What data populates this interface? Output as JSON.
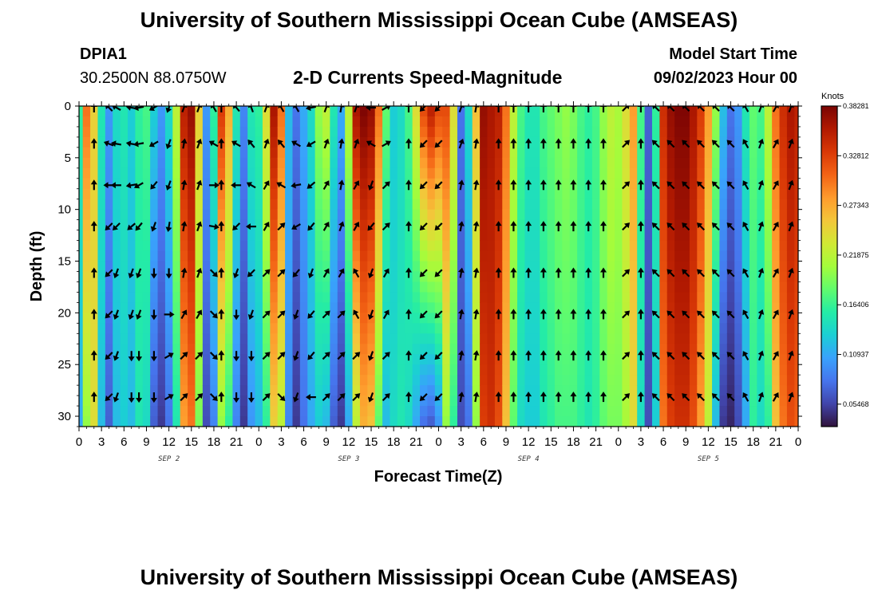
{
  "page": {
    "title_top": "University of Southern Mississippi Ocean Cube (AMSEAS)",
    "title_bottom": "University of Southern Mississippi Ocean Cube (AMSEAS)",
    "station_id": "DPIA1",
    "station_coords": "30.2500N  88.0750W",
    "plot_subtitle": "2-D Currents Speed-Magnitude",
    "model_start_label": "Model Start Time",
    "model_start_value": "09/02/2023 Hour 00"
  },
  "colors": {
    "background": "#ffffff",
    "arrow": "#000000",
    "colormap": [
      "#30123b",
      "#4145ab",
      "#4675ed",
      "#39a2fc",
      "#1bcfd4",
      "#24eca6",
      "#61fc6c",
      "#a4fc3b",
      "#d1e834",
      "#f3c63a",
      "#fe9b2d",
      "#f36315",
      "#d93806",
      "#b11901",
      "#7a0403"
    ]
  },
  "chart_data": {
    "type": "heatmap",
    "title": "2-D Currents Speed-Magnitude",
    "xlabel": "Forecast Time(Z)",
    "ylabel": "Depth (ft)",
    "x_tick_labels": [
      "0",
      "3",
      "6",
      "9",
      "12",
      "15",
      "18",
      "21",
      "0",
      "3",
      "6",
      "9",
      "12",
      "15",
      "18",
      "21",
      "0",
      "3",
      "6",
      "9",
      "12",
      "15",
      "18",
      "21",
      "0",
      "3",
      "6",
      "9",
      "12",
      "15",
      "18",
      "21",
      "0"
    ],
    "day_labels": [
      {
        "label": "SEP 2",
        "at_hour": 12
      },
      {
        "label": "SEP 3",
        "at_hour": 36
      },
      {
        "label": "SEP 4",
        "at_hour": 60
      },
      {
        "label": "SEP 5",
        "at_hour": 84
      }
    ],
    "xlim_hours": [
      0,
      96
    ],
    "y_ticks": [
      "0",
      "5",
      "10",
      "15",
      "20",
      "25",
      "30"
    ],
    "ylim_ft": [
      0,
      31
    ],
    "colorbar": {
      "label": "Knots",
      "ticks": [
        "0.38281",
        "0.32812",
        "0.27343",
        "0.21875",
        "0.16406",
        "0.10937",
        "0.05468"
      ],
      "range": [
        0.03,
        0.3828
      ]
    },
    "speed_knots_by_hour": [
      {
        "hour": 0,
        "top": 0.16,
        "bottom": 0.11
      },
      {
        "hour": 1,
        "top": 0.3,
        "bottom": 0.2
      },
      {
        "hour": 2,
        "top": 0.25,
        "bottom": 0.24
      },
      {
        "hour": 3,
        "top": 0.15,
        "bottom": 0.12
      },
      {
        "hour": 4,
        "top": 0.1,
        "bottom": 0.07
      },
      {
        "hour": 5,
        "top": 0.14,
        "bottom": 0.12
      },
      {
        "hour": 6,
        "top": 0.15,
        "bottom": 0.13
      },
      {
        "hour": 7,
        "top": 0.13,
        "bottom": 0.12
      },
      {
        "hour": 8,
        "top": 0.16,
        "bottom": 0.15
      },
      {
        "hour": 9,
        "top": 0.17,
        "bottom": 0.14
      },
      {
        "hour": 10,
        "top": 0.13,
        "bottom": 0.07
      },
      {
        "hour": 11,
        "top": 0.1,
        "bottom": 0.05
      },
      {
        "hour": 12,
        "top": 0.14,
        "bottom": 0.08
      },
      {
        "hour": 13,
        "top": 0.22,
        "bottom": 0.15
      },
      {
        "hour": 14,
        "top": 0.35,
        "bottom": 0.28
      },
      {
        "hour": 15,
        "top": 0.37,
        "bottom": 0.3
      },
      {
        "hour": 16,
        "top": 0.25,
        "bottom": 0.19
      },
      {
        "hour": 17,
        "top": 0.1,
        "bottom": 0.06
      },
      {
        "hour": 18,
        "top": 0.16,
        "bottom": 0.09
      },
      {
        "hour": 19,
        "top": 0.33,
        "bottom": 0.2
      },
      {
        "hour": 20,
        "top": 0.27,
        "bottom": 0.16
      },
      {
        "hour": 21,
        "top": 0.15,
        "bottom": 0.09
      },
      {
        "hour": 22,
        "top": 0.09,
        "bottom": 0.05
      },
      {
        "hour": 23,
        "top": 0.15,
        "bottom": 0.1
      },
      {
        "hour": 24,
        "top": 0.16,
        "bottom": 0.12
      },
      {
        "hour": 25,
        "top": 0.24,
        "bottom": 0.16
      },
      {
        "hour": 26,
        "top": 0.36,
        "bottom": 0.25
      },
      {
        "hour": 27,
        "top": 0.3,
        "bottom": 0.22
      },
      {
        "hour": 28,
        "top": 0.12,
        "bottom": 0.09
      },
      {
        "hour": 29,
        "top": 0.08,
        "bottom": 0.05
      },
      {
        "hour": 30,
        "top": 0.11,
        "bottom": 0.08
      },
      {
        "hour": 31,
        "top": 0.14,
        "bottom": 0.11
      },
      {
        "hour": 32,
        "top": 0.2,
        "bottom": 0.13
      },
      {
        "hour": 33,
        "top": 0.22,
        "bottom": 0.12
      },
      {
        "hour": 34,
        "top": 0.15,
        "bottom": 0.07
      },
      {
        "hour": 35,
        "top": 0.11,
        "bottom": 0.05
      },
      {
        "hour": 36,
        "top": 0.22,
        "bottom": 0.11
      },
      {
        "hour": 37,
        "top": 0.36,
        "bottom": 0.22
      },
      {
        "hour": 38,
        "top": 0.38,
        "bottom": 0.27
      },
      {
        "hour": 39,
        "top": 0.37,
        "bottom": 0.26
      },
      {
        "hour": 40,
        "top": 0.3,
        "bottom": 0.18
      },
      {
        "hour": 41,
        "top": 0.18,
        "bottom": 0.12
      },
      {
        "hour": 42,
        "top": 0.13,
        "bottom": 0.14
      },
      {
        "hour": 43,
        "top": 0.14,
        "bottom": 0.15
      },
      {
        "hour": 44,
        "top": 0.17,
        "bottom": 0.14
      },
      {
        "hour": 45,
        "top": 0.24,
        "bottom": 0.11
      },
      {
        "hour": 46,
        "top": 0.32,
        "bottom": 0.08
      },
      {
        "hour": 47,
        "top": 0.35,
        "bottom": 0.07
      },
      {
        "hour": 48,
        "top": 0.32,
        "bottom": 0.1
      },
      {
        "hour": 49,
        "top": 0.32,
        "bottom": 0.2
      },
      {
        "hour": 50,
        "top": 0.24,
        "bottom": 0.16
      },
      {
        "hour": 51,
        "top": 0.08,
        "bottom": 0.06
      },
      {
        "hour": 52,
        "top": 0.14,
        "bottom": 0.08
      },
      {
        "hour": 53,
        "top": 0.26,
        "bottom": 0.2
      },
      {
        "hour": 54,
        "top": 0.37,
        "bottom": 0.33
      },
      {
        "hour": 55,
        "top": 0.36,
        "bottom": 0.34
      },
      {
        "hour": 56,
        "top": 0.35,
        "bottom": 0.32
      },
      {
        "hour": 57,
        "top": 0.3,
        "bottom": 0.26
      },
      {
        "hour": 58,
        "top": 0.22,
        "bottom": 0.18
      },
      {
        "hour": 59,
        "top": 0.17,
        "bottom": 0.14
      },
      {
        "hour": 60,
        "top": 0.15,
        "bottom": 0.13
      },
      {
        "hour": 61,
        "top": 0.15,
        "bottom": 0.13
      },
      {
        "hour": 62,
        "top": 0.17,
        "bottom": 0.15
      },
      {
        "hour": 63,
        "top": 0.18,
        "bottom": 0.16
      },
      {
        "hour": 64,
        "top": 0.19,
        "bottom": 0.17
      },
      {
        "hour": 65,
        "top": 0.2,
        "bottom": 0.17
      },
      {
        "hour": 66,
        "top": 0.19,
        "bottom": 0.17
      },
      {
        "hour": 67,
        "top": 0.17,
        "bottom": 0.16
      },
      {
        "hour": 68,
        "top": 0.16,
        "bottom": 0.15
      },
      {
        "hour": 69,
        "top": 0.17,
        "bottom": 0.16
      },
      {
        "hour": 70,
        "top": 0.2,
        "bottom": 0.18
      },
      {
        "hour": 71,
        "top": 0.22,
        "bottom": 0.19
      },
      {
        "hour": 72,
        "top": 0.21,
        "bottom": 0.19
      },
      {
        "hour": 73,
        "top": 0.24,
        "bottom": 0.21
      },
      {
        "hour": 74,
        "top": 0.28,
        "bottom": 0.24
      },
      {
        "hour": 75,
        "top": 0.17,
        "bottom": 0.14
      },
      {
        "hour": 76,
        "top": 0.07,
        "bottom": 0.06
      },
      {
        "hour": 77,
        "top": 0.16,
        "bottom": 0.13
      },
      {
        "hour": 78,
        "top": 0.34,
        "bottom": 0.3
      },
      {
        "hour": 79,
        "top": 0.37,
        "bottom": 0.33
      },
      {
        "hour": 80,
        "top": 0.38,
        "bottom": 0.34
      },
      {
        "hour": 81,
        "top": 0.38,
        "bottom": 0.34
      },
      {
        "hour": 82,
        "top": 0.36,
        "bottom": 0.32
      },
      {
        "hour": 83,
        "top": 0.33,
        "bottom": 0.28
      },
      {
        "hour": 84,
        "top": 0.28,
        "bottom": 0.22
      },
      {
        "hour": 85,
        "top": 0.2,
        "bottom": 0.12
      },
      {
        "hour": 86,
        "top": 0.12,
        "bottom": 0.05
      },
      {
        "hour": 87,
        "top": 0.08,
        "bottom": 0.04
      },
      {
        "hour": 88,
        "top": 0.1,
        "bottom": 0.06
      },
      {
        "hour": 89,
        "top": 0.15,
        "bottom": 0.11
      },
      {
        "hour": 90,
        "top": 0.18,
        "bottom": 0.16
      },
      {
        "hour": 91,
        "top": 0.17,
        "bottom": 0.14
      },
      {
        "hour": 92,
        "top": 0.22,
        "bottom": 0.16
      },
      {
        "hour": 93,
        "top": 0.3,
        "bottom": 0.26
      },
      {
        "hour": 94,
        "top": 0.34,
        "bottom": 0.3
      },
      {
        "hour": 95,
        "top": 0.36,
        "bottom": 0.32
      },
      {
        "hour": 96,
        "top": 0.35,
        "bottom": 0.31
      }
    ],
    "arrow_depths_ft": [
      0,
      3.5,
      7.5,
      11.5,
      16,
      20,
      24,
      28
    ],
    "arrow_direction_deg_by_hour": [
      {
        "hour": 2,
        "dir": [
          0,
          0,
          0,
          0,
          0,
          0,
          0,
          0
        ]
      },
      {
        "hour": 4,
        "dir": [
          315,
          290,
          270,
          225,
          225,
          225,
          225,
          225
        ]
      },
      {
        "hour": 5,
        "dir": [
          300,
          280,
          270,
          225,
          200,
          200,
          200,
          200
        ]
      },
      {
        "hour": 7,
        "dir": [
          280,
          280,
          260,
          230,
          200,
          200,
          180,
          180
        ]
      },
      {
        "hour": 8,
        "dir": [
          260,
          260,
          240,
          220,
          200,
          200,
          180,
          180
        ]
      },
      {
        "hour": 10,
        "dir": [
          240,
          240,
          220,
          200,
          180,
          180,
          180,
          180
        ]
      },
      {
        "hour": 12,
        "dir": [
          200,
          200,
          200,
          190,
          180,
          90,
          60,
          60
        ]
      },
      {
        "hour": 14,
        "dir": [
          20,
          10,
          10,
          10,
          10,
          30,
          45,
          45
        ]
      },
      {
        "hour": 16,
        "dir": [
          20,
          20,
          20,
          20,
          20,
          30,
          45,
          45
        ]
      },
      {
        "hour": 18,
        "dir": [
          330,
          300,
          90,
          100,
          135,
          135,
          135,
          135
        ]
      },
      {
        "hour": 19,
        "dir": [
          0,
          0,
          0,
          0,
          0,
          0,
          0,
          0
        ]
      },
      {
        "hour": 21,
        "dir": [
          320,
          300,
          270,
          225,
          200,
          180,
          180,
          180
        ]
      },
      {
        "hour": 23,
        "dir": [
          340,
          320,
          300,
          270,
          225,
          200,
          180,
          180
        ]
      },
      {
        "hour": 25,
        "dir": [
          20,
          20,
          30,
          30,
          45,
          45,
          45,
          45
        ]
      },
      {
        "hour": 27,
        "dir": [
          330,
          320,
          300,
          45,
          45,
          45,
          45,
          135
        ]
      },
      {
        "hour": 29,
        "dir": [
          330,
          300,
          260,
          240,
          220,
          200,
          200,
          200
        ]
      },
      {
        "hour": 31,
        "dir": [
          260,
          240,
          230,
          220,
          200,
          220,
          220,
          270
        ]
      },
      {
        "hour": 33,
        "dir": [
          20,
          20,
          30,
          30,
          30,
          45,
          45,
          45
        ]
      },
      {
        "hour": 35,
        "dir": [
          10,
          10,
          10,
          20,
          30,
          45,
          45,
          45
        ]
      },
      {
        "hour": 37,
        "dir": [
          20,
          20,
          30,
          30,
          330,
          330,
          45,
          45
        ]
      },
      {
        "hour": 39,
        "dir": [
          270,
          300,
          200,
          220,
          200,
          200,
          200,
          200
        ]
      },
      {
        "hour": 41,
        "dir": [
          60,
          60,
          45,
          45,
          30,
          30,
          45,
          45
        ]
      },
      {
        "hour": 44,
        "dir": [
          0,
          0,
          0,
          0,
          0,
          0,
          0,
          0
        ]
      },
      {
        "hour": 46,
        "dir": [
          225,
          225,
          225,
          225,
          225,
          225,
          225,
          225
        ]
      },
      {
        "hour": 48,
        "dir": [
          225,
          225,
          225,
          225,
          225,
          225,
          225,
          225
        ]
      },
      {
        "hour": 51,
        "dir": [
          20,
          20,
          10,
          10,
          10,
          10,
          10,
          10
        ]
      },
      {
        "hour": 53,
        "dir": [
          10,
          10,
          10,
          10,
          10,
          10,
          10,
          10
        ]
      },
      {
        "hour": 56,
        "dir": [
          0,
          0,
          0,
          0,
          0,
          0,
          0,
          0
        ]
      },
      {
        "hour": 58,
        "dir": [
          0,
          0,
          0,
          0,
          0,
          0,
          0,
          0
        ]
      },
      {
        "hour": 60,
        "dir": [
          0,
          0,
          0,
          0,
          0,
          0,
          0,
          0
        ]
      },
      {
        "hour": 62,
        "dir": [
          0,
          0,
          0,
          0,
          0,
          0,
          0,
          0
        ]
      },
      {
        "hour": 64,
        "dir": [
          0,
          0,
          0,
          0,
          0,
          0,
          0,
          0
        ]
      },
      {
        "hour": 66,
        "dir": [
          0,
          0,
          0,
          0,
          0,
          0,
          0,
          0
        ]
      },
      {
        "hour": 68,
        "dir": [
          0,
          0,
          0,
          0,
          0,
          0,
          0,
          0
        ]
      },
      {
        "hour": 70,
        "dir": [
          0,
          0,
          0,
          0,
          0,
          0,
          0,
          0
        ]
      },
      {
        "hour": 73,
        "dir": [
          45,
          45,
          45,
          45,
          45,
          45,
          45,
          45
        ]
      },
      {
        "hour": 75,
        "dir": [
          0,
          0,
          0,
          0,
          0,
          0,
          0,
          0
        ]
      },
      {
        "hour": 77,
        "dir": [
          315,
          315,
          315,
          315,
          315,
          315,
          315,
          315
        ]
      },
      {
        "hour": 79,
        "dir": [
          315,
          315,
          315,
          315,
          315,
          315,
          315,
          315
        ]
      },
      {
        "hour": 81,
        "dir": [
          315,
          315,
          315,
          315,
          315,
          315,
          315,
          315
        ]
      },
      {
        "hour": 83,
        "dir": [
          315,
          315,
          315,
          315,
          315,
          315,
          315,
          315
        ]
      },
      {
        "hour": 85,
        "dir": [
          315,
          315,
          315,
          315,
          315,
          315,
          315,
          315
        ]
      },
      {
        "hour": 87,
        "dir": [
          315,
          315,
          315,
          315,
          315,
          315,
          315,
          315
        ]
      },
      {
        "hour": 89,
        "dir": [
          330,
          330,
          330,
          330,
          330,
          330,
          330,
          330
        ]
      },
      {
        "hour": 91,
        "dir": [
          20,
          20,
          20,
          20,
          20,
          20,
          20,
          20
        ]
      },
      {
        "hour": 93,
        "dir": [
          30,
          30,
          30,
          30,
          30,
          30,
          30,
          30
        ]
      },
      {
        "hour": 95,
        "dir": [
          20,
          20,
          20,
          20,
          20,
          20,
          20,
          20
        ]
      }
    ]
  }
}
